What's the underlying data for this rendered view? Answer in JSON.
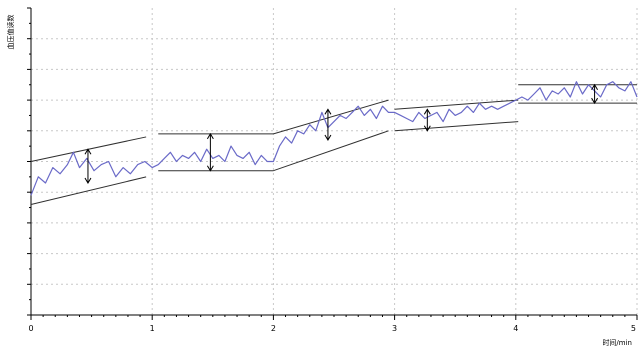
{
  "chart_data": {
    "type": "line",
    "title": "",
    "ylabel": "血压值读数",
    "xlabel": "时间/min",
    "xlim": [
      0,
      5
    ],
    "ylim": [
      0,
      10
    ],
    "x_tick_labels": [
      "0",
      "1",
      "2",
      "3",
      "4",
      "5"
    ],
    "grid": true,
    "series": [
      {
        "color": "#6a6ac8",
        "x": [
          0,
          0.06,
          0.12,
          0.18,
          0.24,
          0.3,
          0.35,
          0.4,
          0.46,
          0.52,
          0.58,
          0.64,
          0.7,
          0.76,
          0.82,
          0.88,
          0.94,
          1.0,
          1.05,
          1.1,
          1.15,
          1.2,
          1.25,
          1.3,
          1.35,
          1.4,
          1.45,
          1.5,
          1.55,
          1.6,
          1.65,
          1.7,
          1.75,
          1.8,
          1.85,
          1.9,
          1.95,
          2.0,
          2.05,
          2.1,
          2.15,
          2.2,
          2.25,
          2.3,
          2.35,
          2.4,
          2.45,
          2.5,
          2.55,
          2.6,
          2.65,
          2.7,
          2.75,
          2.8,
          2.85,
          2.9,
          2.95,
          3.0,
          3.05,
          3.1,
          3.15,
          3.2,
          3.25,
          3.3,
          3.35,
          3.4,
          3.45,
          3.5,
          3.55,
          3.6,
          3.65,
          3.7,
          3.75,
          3.8,
          3.85,
          3.9,
          3.95,
          4.0,
          4.05,
          4.1,
          4.15,
          4.2,
          4.25,
          4.3,
          4.35,
          4.4,
          4.45,
          4.5,
          4.55,
          4.6,
          4.65,
          4.7,
          4.75,
          4.8,
          4.85,
          4.9,
          4.95,
          5.0
        ],
        "y": [
          3.9,
          4.5,
          4.3,
          4.8,
          4.6,
          4.9,
          5.3,
          4.8,
          5.1,
          4.7,
          4.9,
          5.0,
          4.5,
          4.8,
          4.6,
          4.9,
          5.0,
          4.8,
          4.9,
          5.1,
          5.3,
          5.0,
          5.2,
          5.1,
          5.3,
          5.0,
          5.4,
          5.1,
          5.2,
          5.0,
          5.5,
          5.2,
          5.1,
          5.3,
          4.9,
          5.2,
          5.0,
          5.0,
          5.5,
          5.8,
          5.6,
          6.0,
          5.9,
          6.2,
          6.0,
          6.6,
          6.1,
          6.3,
          6.5,
          6.4,
          6.6,
          6.8,
          6.5,
          6.7,
          6.4,
          6.8,
          6.6,
          6.6,
          6.5,
          6.4,
          6.3,
          6.6,
          6.4,
          6.5,
          6.6,
          6.3,
          6.7,
          6.5,
          6.6,
          6.8,
          6.6,
          6.9,
          6.7,
          6.8,
          6.7,
          6.8,
          6.9,
          7.0,
          7.1,
          7.0,
          7.2,
          7.4,
          7.0,
          7.3,
          7.2,
          7.4,
          7.1,
          7.6,
          7.2,
          7.5,
          7.3,
          7.1,
          7.5,
          7.6,
          7.4,
          7.3,
          7.6,
          7.1
        ]
      }
    ],
    "envelope_lines": [
      {
        "x": [
          0,
          0.95
        ],
        "y": [
          5.0,
          5.8
        ]
      },
      {
        "x": [
          0,
          0.95
        ],
        "y": [
          3.6,
          4.5
        ]
      },
      {
        "x": [
          1.05,
          2.0
        ],
        "y": [
          5.9,
          5.9
        ]
      },
      {
        "x": [
          1.05,
          2.0
        ],
        "y": [
          4.7,
          4.7
        ]
      },
      {
        "x": [
          2.0,
          2.95
        ],
        "y": [
          5.9,
          7.0
        ]
      },
      {
        "x": [
          2.0,
          2.95
        ],
        "y": [
          4.7,
          6.0
        ]
      },
      {
        "x": [
          3.0,
          4.02
        ],
        "y": [
          6.7,
          7.0
        ]
      },
      {
        "x": [
          3.0,
          4.02
        ],
        "y": [
          6.0,
          6.3
        ]
      },
      {
        "x": [
          4.02,
          5.0
        ],
        "y": [
          7.5,
          7.5
        ]
      },
      {
        "x": [
          4.02,
          5.0
        ],
        "y": [
          6.9,
          6.9
        ]
      }
    ],
    "range_arrows": [
      {
        "x": 0.47,
        "y": [
          5.4,
          4.3
        ]
      },
      {
        "x": 1.48,
        "y": [
          5.9,
          4.7
        ]
      },
      {
        "x": 2.45,
        "y": [
          6.7,
          5.7
        ]
      },
      {
        "x": 3.27,
        "y": [
          6.7,
          6.0
        ]
      },
      {
        "x": 4.65,
        "y": [
          7.5,
          6.9
        ]
      }
    ]
  }
}
